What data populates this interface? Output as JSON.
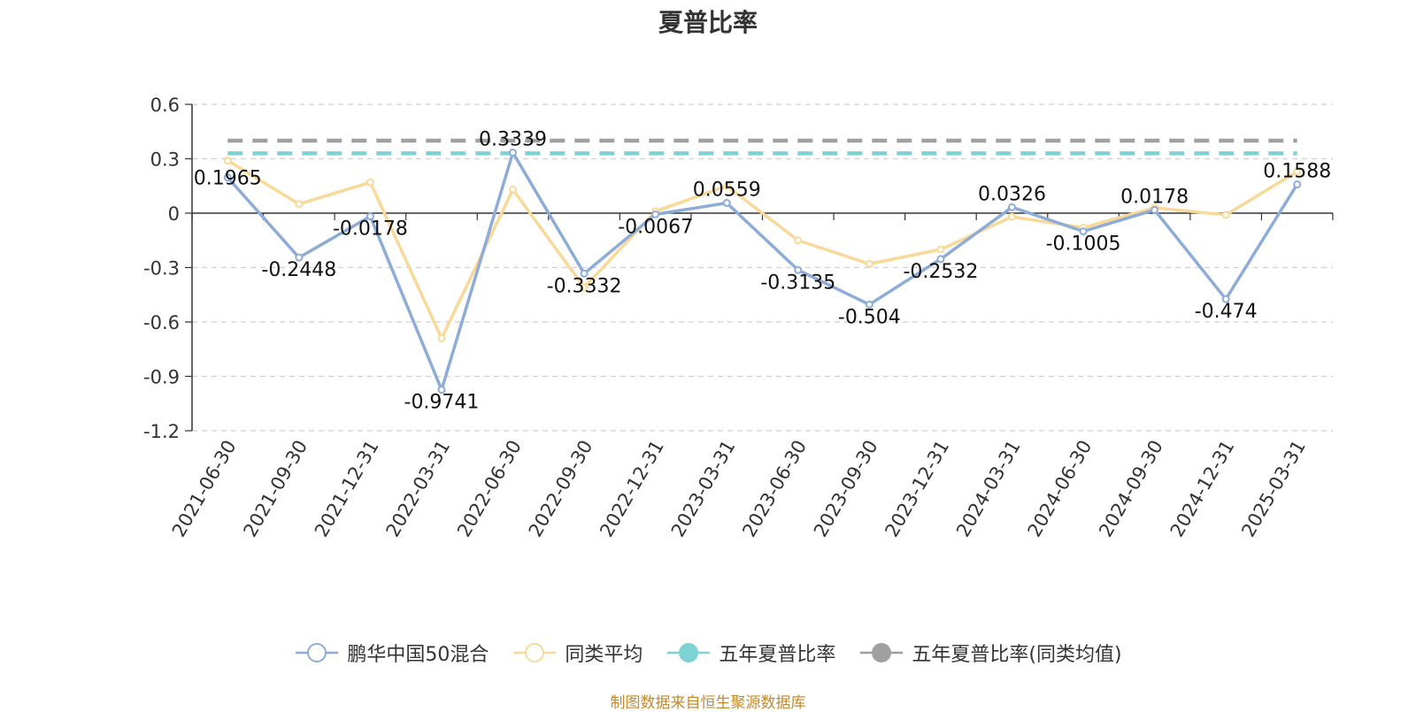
{
  "chart_data": {
    "type": "line",
    "title": "夏普比率",
    "x": [
      "2021-06-30",
      "2021-09-30",
      "2021-12-31",
      "2022-03-31",
      "2022-06-30",
      "2022-09-30",
      "2022-12-31",
      "2023-03-31",
      "2023-06-30",
      "2023-09-30",
      "2023-12-31",
      "2024-03-31",
      "2024-06-30",
      "2024-09-30",
      "2024-12-31",
      "2025-03-31"
    ],
    "y_ticks": [
      "0.6",
      "0.3",
      "0",
      "-0.3",
      "-0.6",
      "-0.9",
      "-1.2"
    ],
    "ylim": [
      -1.2,
      0.6
    ],
    "grid": "horizontal dashed",
    "legend_position": "bottom",
    "series": [
      {
        "name": "鹏华中国50混合",
        "color": "#8eacd8",
        "values": [
          0.1965,
          -0.2448,
          -0.0178,
          -0.9741,
          0.3339,
          -0.3332,
          -0.0067,
          0.0559,
          -0.3135,
          -0.504,
          -0.2532,
          0.0326,
          -0.1005,
          0.0178,
          -0.474,
          0.1588
        ],
        "labels": [
          "0.1965",
          "-0.2448",
          "-0.0178",
          "-0.9741",
          "0.3339",
          "-0.3332",
          "-0.0067",
          "0.0559",
          "-0.3135",
          "-0.504",
          "-0.2532",
          "0.0326",
          "-0.1005",
          "0.0178",
          "-0.474",
          "0.1588"
        ]
      },
      {
        "name": "同类平均",
        "color": "#f9d998",
        "values": [
          0.29,
          0.05,
          0.17,
          -0.69,
          0.13,
          -0.41,
          0.01,
          0.15,
          -0.15,
          -0.28,
          -0.2,
          -0.02,
          -0.08,
          0.03,
          -0.01,
          0.23
        ]
      },
      {
        "name": "五年夏普比率",
        "color": "#7dd3d3",
        "constant": 0.33
      },
      {
        "name": "五年夏普比率(同类均值)",
        "color": "#a0a0a0",
        "constant": 0.4
      }
    ]
  },
  "source": "制图数据来自恒生聚源数据库"
}
